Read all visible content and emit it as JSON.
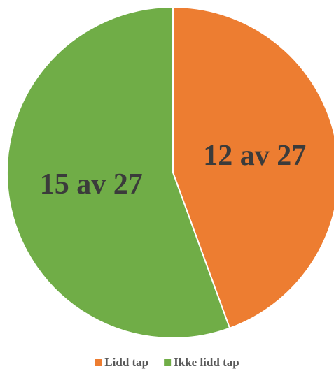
{
  "chart_data": {
    "type": "pie",
    "categories": [
      "Lidd tap",
      "Ikke lidd tap"
    ],
    "values": [
      12,
      15
    ],
    "value_labels": [
      "12 av 27",
      "15 av 27"
    ],
    "colors": [
      "#ed7d31",
      "#70ad47"
    ],
    "legend": "bottom"
  }
}
